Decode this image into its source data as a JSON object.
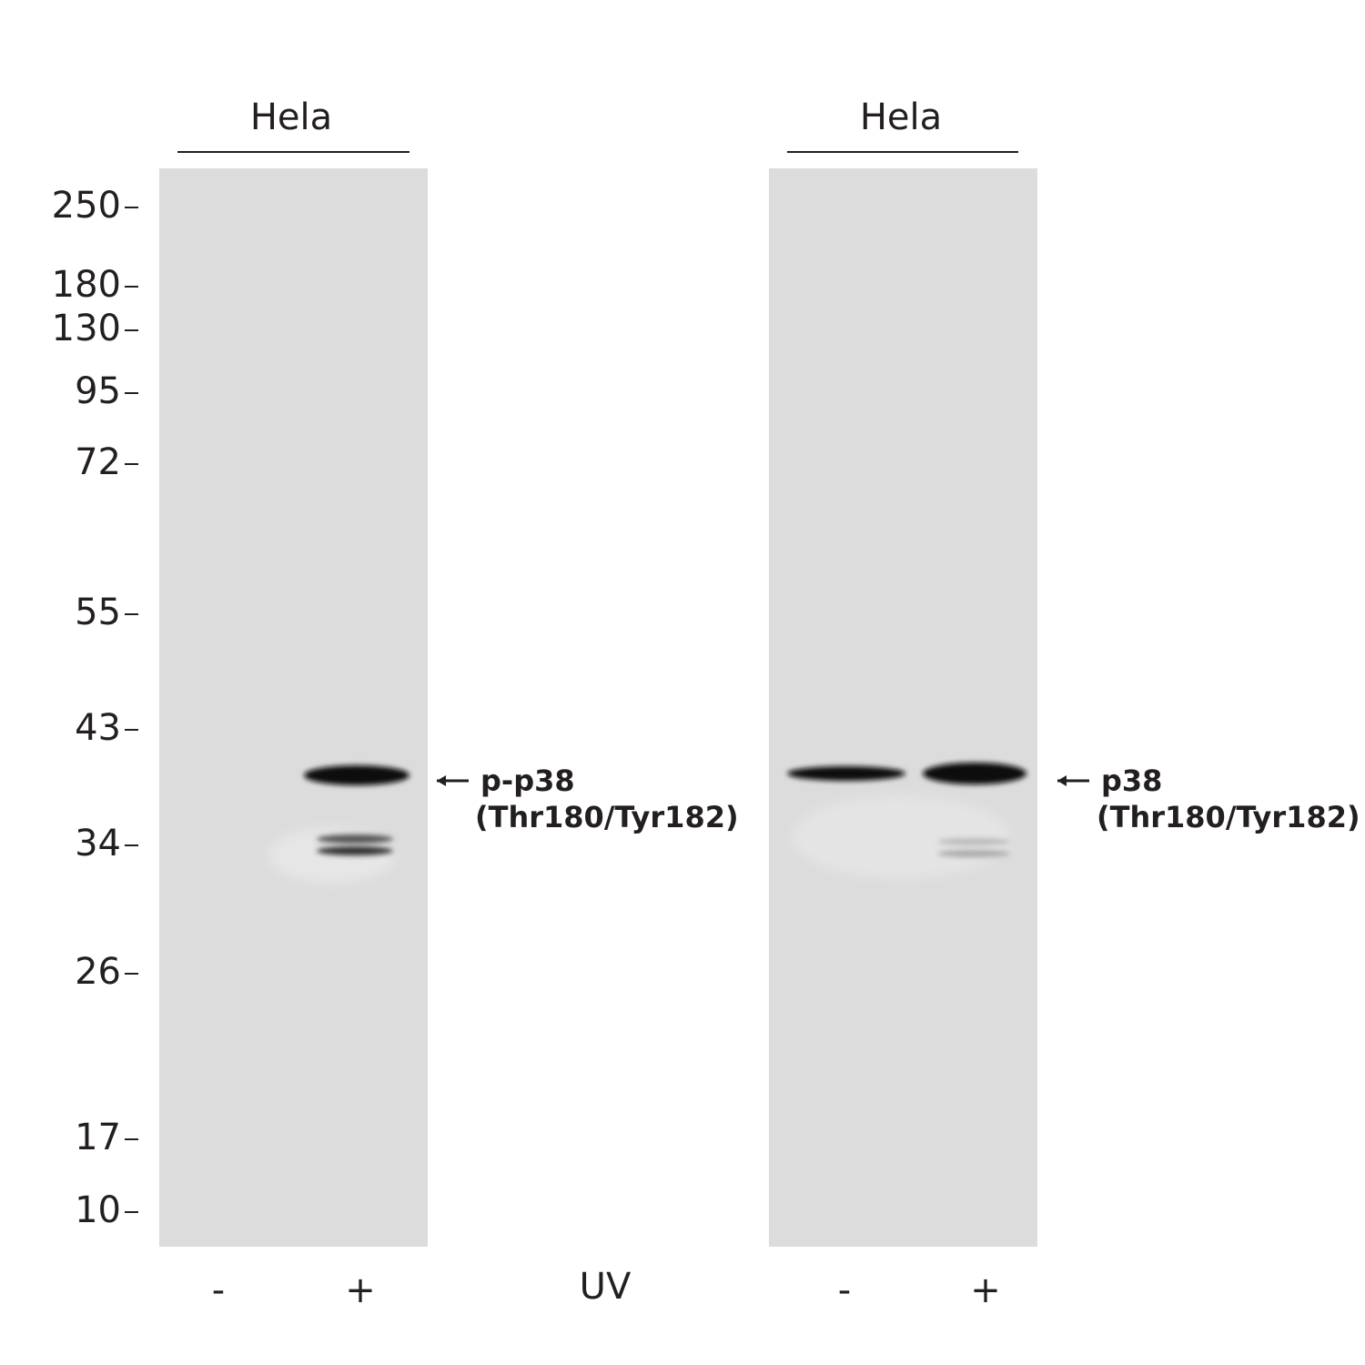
{
  "panels": [
    {
      "title": "Hela",
      "band_label": [
        "p-p38",
        "(Thr180/Tyr182)"
      ],
      "lanes": [
        "-",
        "+"
      ]
    },
    {
      "title": "Hela",
      "band_label": [
        "p38",
        "(Thr180/Tyr182)"
      ],
      "lanes": [
        "-",
        "+"
      ]
    }
  ],
  "markers": [
    "250",
    "180",
    "130",
    "95",
    "72",
    "55",
    "43",
    "34",
    "26",
    "17",
    "10"
  ],
  "treatment": "UV"
}
